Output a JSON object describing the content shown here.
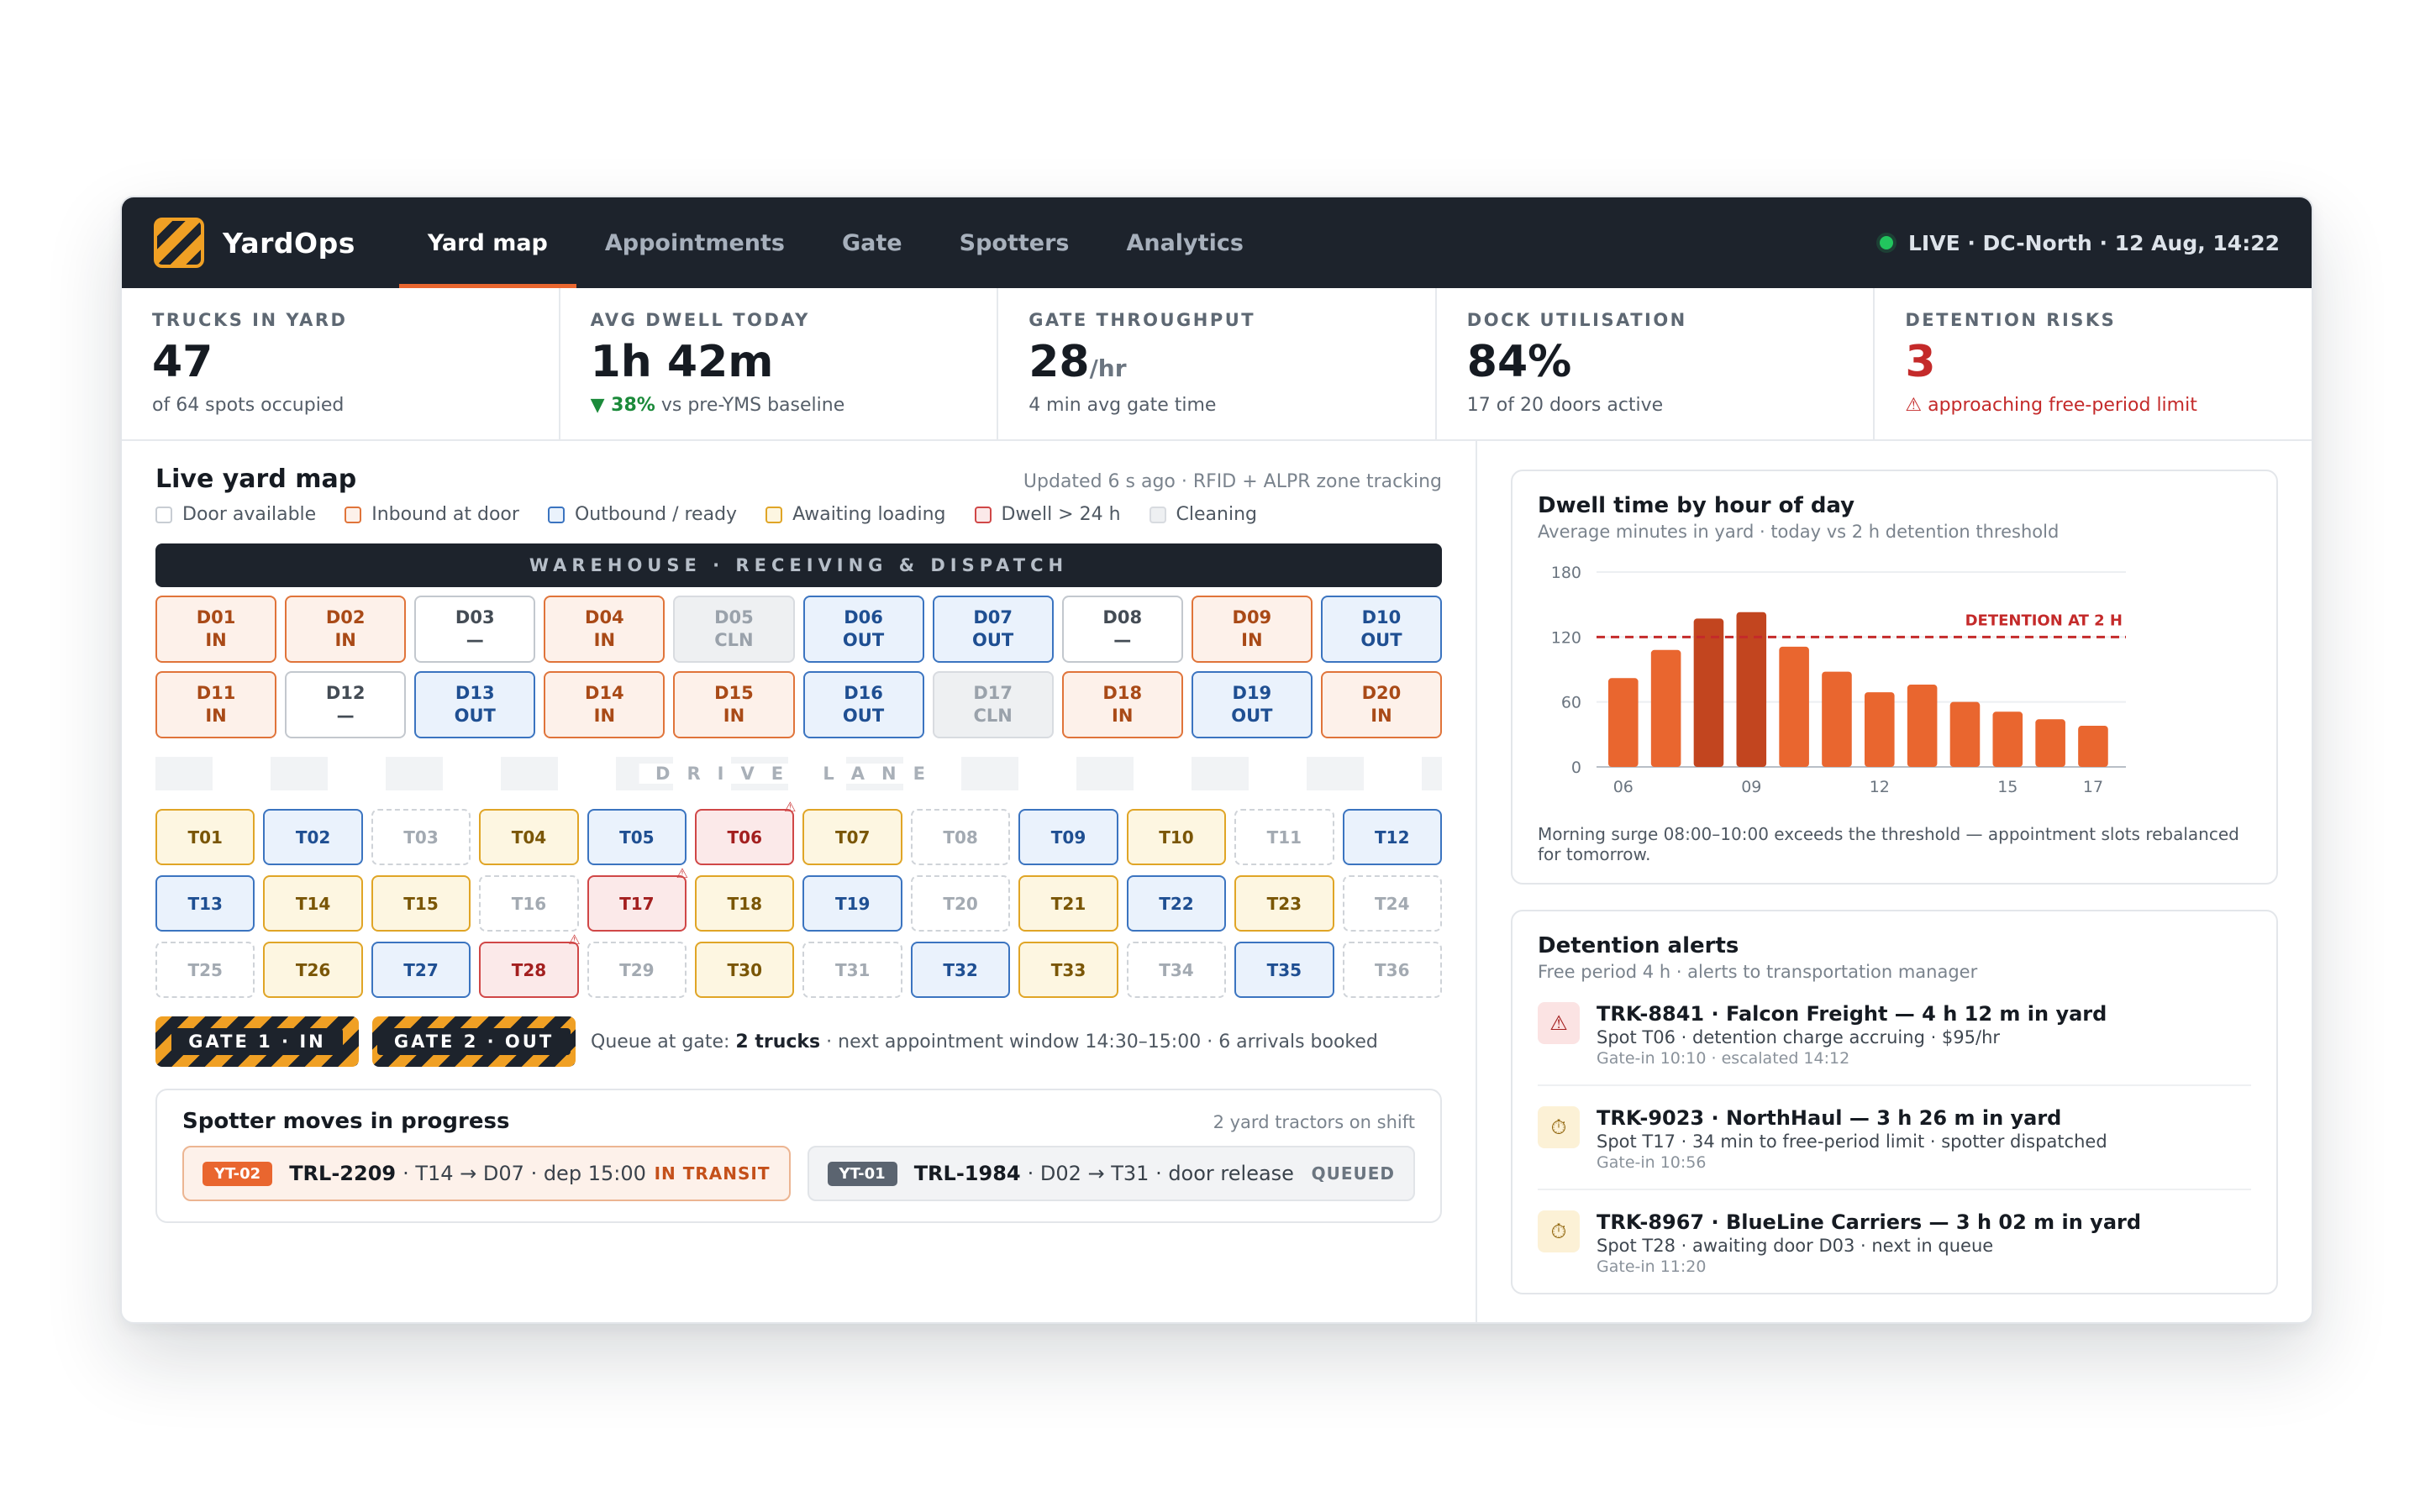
{
  "topbar": {
    "brand": "YardOps",
    "nav": [
      "Yard map",
      "Appointments",
      "Gate",
      "Spotters",
      "Analytics"
    ],
    "live": "LIVE · DC-North · 12 Aug, 14:22"
  },
  "kpis": {
    "trucks": {
      "label": "TRUCKS IN YARD",
      "value": "47",
      "sub": "of 64 spots occupied"
    },
    "dwell": {
      "label": "AVG DWELL TODAY",
      "value": "1h 42m",
      "delta": "▼ 38%",
      "sub": "vs pre-YMS baseline"
    },
    "gate": {
      "label": "GATE THROUGHPUT",
      "value": "28",
      "unit": "/hr",
      "sub": "4 min avg gate time"
    },
    "dock": {
      "label": "DOCK UTILISATION",
      "value": "84%",
      "sub": "17 of 20 doors active"
    },
    "detention": {
      "label": "DETENTION RISKS",
      "value": "3",
      "sub": "⚠ approaching free-period limit"
    }
  },
  "map": {
    "title": "Live yard map",
    "updated": "Updated 6 s ago · RFID + ALPR zone tracking",
    "legend": [
      "Door available",
      "Inbound at door",
      "Outbound / ready",
      "Awaiting loading",
      "Dwell > 24 h",
      "Cleaning"
    ],
    "warehouse": "WAREHOUSE · RECEIVING & DISPATCH",
    "lane": "DRIVE LANE",
    "doors": [
      {
        "id": "D01",
        "status": "IN"
      },
      {
        "id": "D02",
        "status": "IN"
      },
      {
        "id": "D03",
        "status": "—"
      },
      {
        "id": "D04",
        "status": "IN"
      },
      {
        "id": "D05",
        "status": "CLN"
      },
      {
        "id": "D06",
        "status": "OUT"
      },
      {
        "id": "D07",
        "status": "OUT"
      },
      {
        "id": "D08",
        "status": "—"
      },
      {
        "id": "D09",
        "status": "IN"
      },
      {
        "id": "D10",
        "status": "OUT"
      },
      {
        "id": "D11",
        "status": "IN"
      },
      {
        "id": "D12",
        "status": "—"
      },
      {
        "id": "D13",
        "status": "OUT"
      },
      {
        "id": "D14",
        "status": "IN"
      },
      {
        "id": "D15",
        "status": "IN"
      },
      {
        "id": "D16",
        "status": "OUT"
      },
      {
        "id": "D17",
        "status": "CLN"
      },
      {
        "id": "D18",
        "status": "IN"
      },
      {
        "id": "D19",
        "status": "OUT"
      },
      {
        "id": "D20",
        "status": "IN"
      }
    ],
    "trailers": [
      {
        "id": "T01",
        "state": "wait"
      },
      {
        "id": "T02",
        "state": "out"
      },
      {
        "id": "T03",
        "state": "empty"
      },
      {
        "id": "T04",
        "state": "wait"
      },
      {
        "id": "T05",
        "state": "out"
      },
      {
        "id": "T06",
        "state": "dwell"
      },
      {
        "id": "T07",
        "state": "wait"
      },
      {
        "id": "T08",
        "state": "empty"
      },
      {
        "id": "T09",
        "state": "out"
      },
      {
        "id": "T10",
        "state": "wait"
      },
      {
        "id": "T11",
        "state": "empty"
      },
      {
        "id": "T12",
        "state": "out"
      },
      {
        "id": "T13",
        "state": "out"
      },
      {
        "id": "T14",
        "state": "wait"
      },
      {
        "id": "T15",
        "state": "wait"
      },
      {
        "id": "T16",
        "state": "empty"
      },
      {
        "id": "T17",
        "state": "dwell"
      },
      {
        "id": "T18",
        "state": "wait"
      },
      {
        "id": "T19",
        "state": "out"
      },
      {
        "id": "T20",
        "state": "empty"
      },
      {
        "id": "T21",
        "state": "wait"
      },
      {
        "id": "T22",
        "state": "out"
      },
      {
        "id": "T23",
        "state": "wait"
      },
      {
        "id": "T24",
        "state": "empty"
      },
      {
        "id": "T25",
        "state": "empty"
      },
      {
        "id": "T26",
        "state": "wait"
      },
      {
        "id": "T27",
        "state": "out"
      },
      {
        "id": "T28",
        "state": "dwell"
      },
      {
        "id": "T29",
        "state": "empty"
      },
      {
        "id": "T30",
        "state": "wait"
      },
      {
        "id": "T31",
        "state": "empty"
      },
      {
        "id": "T32",
        "state": "out"
      },
      {
        "id": "T33",
        "state": "wait"
      },
      {
        "id": "T34",
        "state": "empty"
      },
      {
        "id": "T35",
        "state": "out"
      },
      {
        "id": "T36",
        "state": "empty"
      }
    ],
    "flag_icon": "⚠",
    "gates": [
      "GATE 1 · IN",
      "GATE 2 · OUT"
    ],
    "queue_prefix": "Queue at gate: ",
    "queue_count": "2 trucks",
    "queue_suffix": " · next appointment window 14:30–15:00 · 6 arrivals booked"
  },
  "spotter": {
    "title": "Spotter moves in progress",
    "meta": "2 yard tractors on shift",
    "moves": [
      {
        "tag": "YT-02",
        "trailer": "TRL-2209",
        "detail": "· T14 → D07 · dep 15:00",
        "status": "IN TRANSIT"
      },
      {
        "tag": "YT-01",
        "trailer": "TRL-1984",
        "detail": "· D02 → T31 · door release",
        "status": "QUEUED"
      }
    ]
  },
  "chart": {
    "title": "Dwell time by hour of day",
    "sub": "Average minutes in yard · today vs 2 h detention threshold",
    "note": "Morning surge 08:00–10:00 exceeds the threshold — appointment slots rebalanced for tomorrow."
  },
  "chart_data": {
    "type": "bar",
    "categories": [
      "06",
      "07",
      "08",
      "09",
      "10",
      "11",
      "12",
      "13",
      "14",
      "15",
      "16",
      "17"
    ],
    "x_tick_labels": [
      "06",
      "09",
      "12",
      "15",
      "17"
    ],
    "values": [
      82,
      108,
      137,
      143,
      111,
      88,
      69,
      76,
      60,
      51,
      44,
      38
    ],
    "highlight": [
      "08",
      "09"
    ],
    "ylim": [
      0,
      180
    ],
    "yticks": [
      0,
      60,
      120,
      180
    ],
    "threshold": {
      "value": 120,
      "label": "DETENTION AT 2 H"
    },
    "colors": {
      "bar": "#e9662f",
      "highlight": "#c2451f",
      "threshold": "#c42a2a"
    }
  },
  "alerts": {
    "title": "Detention alerts",
    "sub": "Free period 4 h · alerts to transportation manager",
    "items": [
      {
        "icon": "⚠",
        "level": "crit",
        "title": "TRK-8841 · Falcon Freight — 4 h 12 m in yard",
        "desc": "Spot T06 · detention charge accruing · $95/hr",
        "time": "Gate-in 10:10 · escalated 14:12"
      },
      {
        "icon": "⏱",
        "level": "warn",
        "title": "TRK-9023 · NorthHaul — 3 h 26 m in yard",
        "desc": "Spot T17 · 34 min to free-period limit · spotter dispatched",
        "time": "Gate-in 10:56"
      },
      {
        "icon": "⏱",
        "level": "warn",
        "title": "TRK-8967 · BlueLine Carriers — 3 h 02 m in yard",
        "desc": "Spot T28 · awaiting door D03 · next in queue",
        "time": "Gate-in 11:20"
      }
    ]
  }
}
